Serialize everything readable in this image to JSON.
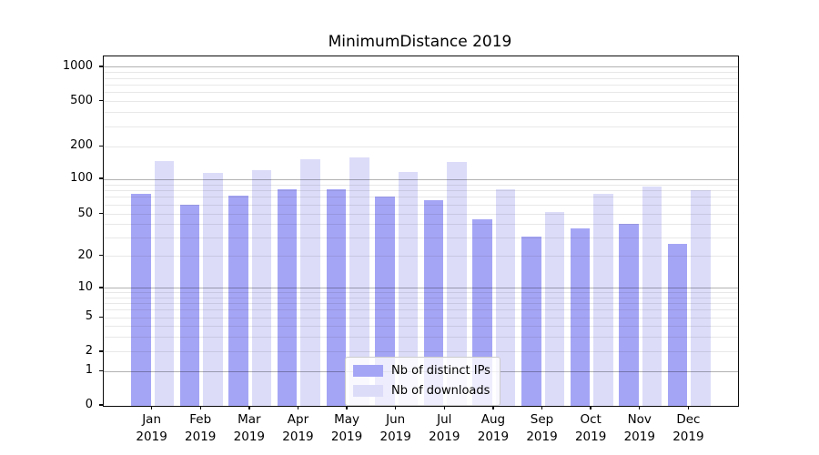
{
  "title": "MinimumDistance 2019",
  "chart_data": {
    "type": "bar",
    "title": "MinimumDistance 2019",
    "categories": [
      "Jan 2019",
      "Feb 2019",
      "Mar 2019",
      "Apr 2019",
      "May 2019",
      "Jun 2019",
      "Jul 2019",
      "Aug 2019",
      "Sep 2019",
      "Oct 2019",
      "Nov 2019",
      "Dec 2019"
    ],
    "series": [
      {
        "name": "Nb of distinct IPs",
        "color": "#a5a5f6",
        "values": [
          75,
          60,
          73,
          82,
          83,
          71,
          66,
          45,
          31,
          37,
          41,
          26
        ]
      },
      {
        "name": "Nb of downloads",
        "color": "#dcdcf9",
        "values": [
          148,
          115,
          123,
          153,
          161,
          117,
          144,
          83,
          52,
          75,
          87,
          81
        ]
      }
    ],
    "xlabel": "",
    "ylabel": "",
    "y_axis": {
      "scale": "symlog",
      "tick_labels": [
        0,
        1,
        2,
        5,
        10,
        20,
        50,
        100,
        200,
        500,
        1000
      ],
      "major_grid_values": [
        1,
        10,
        100,
        1000
      ],
      "ylim": [
        0,
        1150
      ]
    },
    "grid": true,
    "legend": {
      "position": "lower center",
      "entries": [
        "Nb of distinct IPs",
        "Nb of downloads"
      ]
    }
  }
}
